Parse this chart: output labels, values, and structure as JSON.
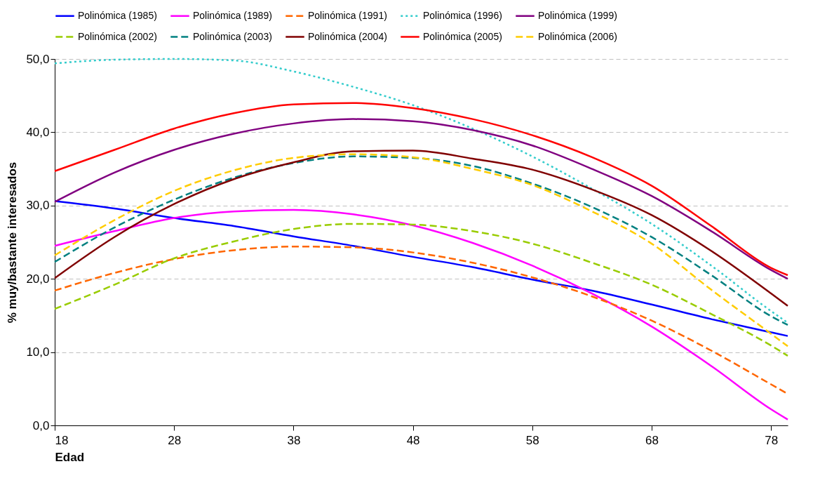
{
  "chart_data": {
    "type": "line",
    "xlabel": "Edad",
    "ylabel": "% muy/bastante interesados",
    "x": [
      18,
      23,
      28,
      33,
      38,
      43,
      48,
      53,
      58,
      63,
      68,
      73,
      78,
      79.4
    ],
    "xlim": [
      18,
      79.4
    ],
    "xticks": [
      18,
      28,
      38,
      48,
      58,
      68,
      78
    ],
    "ylim": [
      0,
      50
    ],
    "yticks": [
      {
        "value": 0,
        "label": "0,0"
      },
      {
        "value": 10,
        "label": "10,0"
      },
      {
        "value": 20,
        "label": "20,0"
      },
      {
        "value": 30,
        "label": "30,0"
      },
      {
        "value": 40,
        "label": "40,0"
      },
      {
        "value": 50,
        "label": "50,0"
      }
    ],
    "grid": "y",
    "legend": "top",
    "marker": "none",
    "series": [
      {
        "name": "Polinómica (1985)",
        "color": "#0000ff",
        "line_style": "solid",
        "values": [
          30.6,
          29.6,
          28.3,
          27.2,
          25.8,
          24.5,
          23.0,
          21.6,
          19.9,
          18.4,
          16.5,
          14.5,
          12.7,
          12.2
        ]
      },
      {
        "name": "Polinómica (1989)",
        "color": "#ff00ff",
        "line_style": "solid",
        "values": [
          24.5,
          26.5,
          28.3,
          29.2,
          29.4,
          28.8,
          27.3,
          24.9,
          21.8,
          18.0,
          13.5,
          8.1,
          2.2,
          0.8
        ]
      },
      {
        "name": "Polinómica (1991)",
        "color": "#ff6600",
        "line_style": "dashed",
        "values": [
          18.4,
          20.8,
          22.7,
          23.9,
          24.4,
          24.3,
          23.6,
          22.2,
          20.2,
          17.6,
          14.3,
          10.2,
          5.6,
          4.3
        ]
      },
      {
        "name": "Polinómica (1996)",
        "color": "#33cccc",
        "line_style": "dotted",
        "values": [
          49.4,
          49.9,
          50.0,
          49.8,
          48.3,
          46.2,
          43.7,
          40.5,
          36.7,
          32.3,
          27.5,
          21.8,
          15.6,
          14.0
        ]
      },
      {
        "name": "Polinómica (1999)",
        "color": "#800080",
        "line_style": "solid",
        "values": [
          30.5,
          34.5,
          37.6,
          39.8,
          41.2,
          41.8,
          41.5,
          40.3,
          38.2,
          35.0,
          31.3,
          26.5,
          21.2,
          20.0
        ]
      },
      {
        "name": "Polinómica (2002)",
        "color": "#99cc00",
        "line_style": "dashed",
        "values": [
          15.9,
          19.2,
          22.8,
          25.1,
          26.8,
          27.5,
          27.4,
          26.5,
          24.8,
          22.2,
          19.2,
          15.2,
          10.9,
          9.5
        ]
      },
      {
        "name": "Polinómica (2003)",
        "color": "#008080",
        "line_style": "dashed",
        "values": [
          22.3,
          27.0,
          30.8,
          33.8,
          35.8,
          36.7,
          36.5,
          35.4,
          33.0,
          29.8,
          25.7,
          20.5,
          14.9,
          13.7
        ]
      },
      {
        "name": "Polinómica (2004)",
        "color": "#800000",
        "line_style": "solid",
        "values": [
          20.1,
          25.7,
          30.2,
          33.6,
          35.9,
          37.4,
          37.5,
          36.4,
          34.9,
          32.2,
          28.7,
          23.8,
          18.0,
          16.3
        ]
      },
      {
        "name": "Polinómica (2005)",
        "color": "#ff0000",
        "line_style": "solid",
        "values": [
          34.7,
          37.6,
          40.5,
          42.6,
          43.8,
          44.0,
          43.3,
          41.8,
          39.6,
          36.6,
          32.7,
          27.2,
          21.5,
          20.5
        ]
      },
      {
        "name": "Polinómica (2006)",
        "color": "#ffcc00",
        "line_style": "dashed",
        "values": [
          23.2,
          28.0,
          32.0,
          34.8,
          36.5,
          37.0,
          36.6,
          35.0,
          32.8,
          29.2,
          24.8,
          18.5,
          12.5,
          10.8
        ]
      }
    ]
  }
}
